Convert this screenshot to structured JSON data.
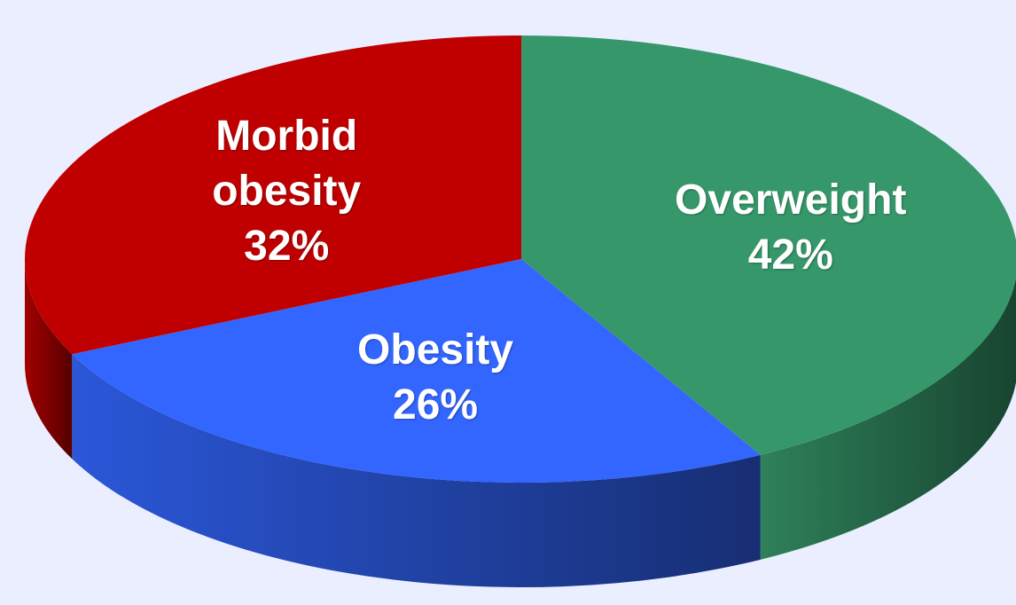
{
  "chart_data": {
    "type": "pie",
    "categories": [
      "Overweight",
      "Obesity",
      "Morbid obesity"
    ],
    "values": [
      42,
      26,
      32
    ],
    "value_labels": [
      "42%",
      "26%",
      "32%"
    ],
    "colors": [
      "#36986a",
      "#3366ff",
      "#c00000"
    ]
  }
}
